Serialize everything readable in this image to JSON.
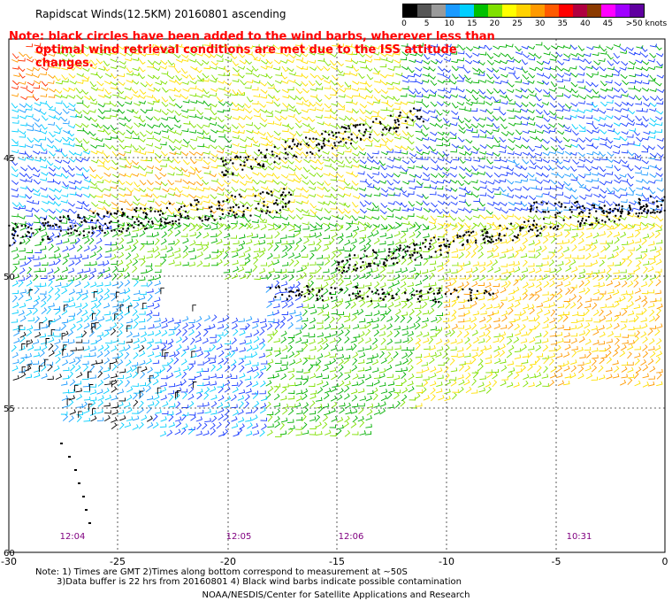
{
  "header": {
    "title": "Rapidscat Winds(12.5KM) 20160801 ascending",
    "note_line1": "Note: black circles have been added to the wind barbs, wherever less than",
    "note_line2": "optimal wind retrieval conditions are met due to the ISS attitude changes."
  },
  "color_scale": {
    "labels": [
      "0",
      "5",
      "10",
      "15",
      "20",
      "25",
      "30",
      "35",
      "40",
      "45",
      ">50 knots"
    ],
    "colors": [
      "#000000",
      "#555555",
      "#9a9a9a",
      "#1a9aff",
      "#00cfff",
      "#00c000",
      "#7fe000",
      "#ffff00",
      "#ffd200",
      "#ff9a00",
      "#ff5a00",
      "#ff0000",
      "#b00040",
      "#8b3a00",
      "#ff00ff",
      "#a000ff",
      "#6000a0"
    ]
  },
  "map": {
    "lat_labels": [
      "45",
      "50",
      "55",
      "60"
    ],
    "lon_labels": [
      "-30",
      "-25",
      "-20",
      "-15",
      "-10",
      "-5",
      "0"
    ],
    "time_labels": [
      "12:04",
      "12:05",
      "12:06",
      "10:31"
    ]
  },
  "footer": {
    "line1": "Note: 1) Times are GMT 2)Times along bottom correspond to measurement at ~50S",
    "line2": "3)Data buffer is 22 hrs from 20160801 4) Black wind barbs indicate possible contamination",
    "credit": "NOAA/NESDIS/Center for Satellite Applications and Research"
  }
}
